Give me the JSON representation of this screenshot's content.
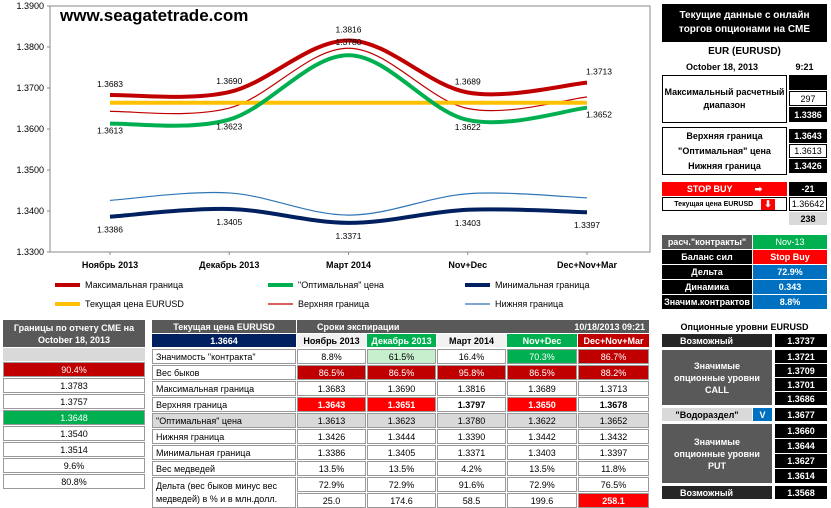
{
  "site": "www.seagatetrade.com",
  "chart_data": {
    "type": "line",
    "categories": [
      "Ноябрь 2013",
      "Декабрь 2013",
      "Март 2014",
      "Nov+Dec",
      "Dec+Nov+Mar"
    ],
    "ylim": [
      1.33,
      1.39
    ],
    "yticks": [
      "1.3300",
      "1.3400",
      "1.3500",
      "1.3600",
      "1.3700",
      "1.3800",
      "1.3900"
    ],
    "series": [
      {
        "name": "Максимальная граница",
        "values": [
          1.3683,
          1.369,
          1.3816,
          1.3689,
          1.3713
        ],
        "color": "#c00000",
        "width": 4,
        "labels": true
      },
      {
        "name": "\"Оптимальная\" цена",
        "values": [
          1.3613,
          1.3623,
          1.378,
          1.3622,
          1.3652
        ],
        "color": "#00b050",
        "width": 4,
        "labels": true
      },
      {
        "name": "Минимальная граница",
        "values": [
          1.3386,
          1.3405,
          1.3371,
          1.3403,
          1.3397
        ],
        "color": "#002060",
        "width": 4,
        "labels": true
      },
      {
        "name": "Текущая цена EURUSD",
        "values": [
          1.3664,
          1.3664,
          1.3664,
          1.3664,
          1.3664
        ],
        "color": "#ffc000",
        "width": 4,
        "labels": false
      },
      {
        "name": "Верхняя граница",
        "values": [
          1.3643,
          1.3651,
          1.3797,
          1.365,
          1.3678
        ],
        "color": "#c00000",
        "width": 1.2,
        "labels": false
      },
      {
        "name": "Нижняя граница",
        "values": [
          1.3426,
          1.3444,
          1.339,
          1.3442,
          1.3432
        ],
        "color": "#2e75b6",
        "width": 1.2,
        "labels": false
      }
    ],
    "value_labels": {
      "top": [
        "1.3683",
        "1.3690",
        "1.3816",
        "1.3689",
        "1.3713"
      ],
      "mid": [
        "1.3613",
        "1.3623",
        "1.3780",
        "1.3622",
        "1.3652"
      ],
      "low": [
        "1.3386",
        "1.3405",
        "1.3371",
        "1.3403",
        "1.3397"
      ]
    },
    "legend": [
      [
        "Максимальная граница",
        "\"Оптимальная\" цена",
        "Минимальная граница"
      ],
      [
        "Текущая цена EURUSD",
        "Верхняя граница",
        "Нижняя граница"
      ]
    ]
  },
  "right_panel": {
    "header": "Текущие данные с онлайн торгов опционами на CME",
    "pair": "EUR (EURUSD)",
    "date": "October 18, 2013",
    "time": "9:21",
    "max_range_label": "Максимальный расчетный диапазон",
    "max_range_values": [
      "",
      "297",
      "1.3386"
    ],
    "upper_label": "Верхняя граница",
    "upper_value": "1.3643",
    "optimal_label": "\"Оптимальная\" цена",
    "optimal_value": "1.3613",
    "lower_label": "Нижняя граница",
    "lower_value": "1.3426",
    "stop_buy_label": "STOP BUY",
    "stop_buy_value": "-21",
    "cur_price_label": "Текущая цена EURUSD",
    "cur_price_value": "1.36642",
    "cur_price_diff": "238",
    "contracts_label": "расч.\"контракты\"",
    "contracts_value": "Nov-13",
    "balance_label": "Баланс сил",
    "balance_value": "Stop Buy",
    "delta_label": "Дельта",
    "delta_value": "72.9%",
    "dynamics_label": "Динамика",
    "dynamics_value": "0.343",
    "significance_label": "Значим.контрактов",
    "significance_value": "8.8%"
  },
  "left_panel": {
    "header": "Границы по отчету CME на October 18, 2013",
    "values": [
      "90.4%",
      "1.3783",
      "1.3757",
      "1.3648",
      "1.3540",
      "1.3514",
      "9.6%",
      "80.8%"
    ]
  },
  "table": {
    "corner": "Текущая цена EURUSD",
    "price": "1.3664",
    "expiry_label": "Сроки экспирации",
    "timestamp": "10/18/2013 09:21",
    "columns": [
      "Ноябрь 2013",
      "Декабрь 2013",
      "Март 2014",
      "Nov+Dec",
      "Dec+Nov+Mar"
    ],
    "rows": [
      {
        "label": "Значимость \"контракта\"",
        "cells": [
          "8.8%",
          "61.5%",
          "16.4%",
          "70.3%",
          "86.7%"
        ]
      },
      {
        "label": "Вес быков",
        "cells": [
          "86.5%",
          "86.5%",
          "95.8%",
          "86.5%",
          "88.2%"
        ]
      },
      {
        "label": "Максимальная граница",
        "cells": [
          "1.3683",
          "1.3690",
          "1.3816",
          "1.3689",
          "1.3713"
        ]
      },
      {
        "label": "Верхняя граница",
        "cells": [
          "1.3643",
          "1.3651",
          "1.3797",
          "1.3650",
          "1.3678"
        ]
      },
      {
        "label": "\"Оптимальная\" цена",
        "cells": [
          "1.3613",
          "1.3623",
          "1.3780",
          "1.3622",
          "1.3652"
        ]
      },
      {
        "label": "Нижняя граница",
        "cells": [
          "1.3426",
          "1.3444",
          "1.3390",
          "1.3442",
          "1.3432"
        ]
      },
      {
        "label": "Минимальная граница",
        "cells": [
          "1.3386",
          "1.3405",
          "1.3371",
          "1.3403",
          "1.3397"
        ]
      },
      {
        "label": "Вес медведей",
        "cells": [
          "13.5%",
          "13.5%",
          "4.2%",
          "13.5%",
          "11.8%"
        ]
      },
      {
        "label": "Дельта (вес быков минус вес медведей) в % и в млн.долл.",
        "label_lines": [
          "Дельта (вес быков минус вес",
          "медведей) в % и в млн.долл."
        ],
        "cells": [
          "72.9%",
          "72.9%",
          "91.6%",
          "72.9%",
          "76.5%"
        ],
        "cells2": [
          "25.0",
          "174.6",
          "58.5",
          "199.6",
          "258.1"
        ]
      }
    ]
  },
  "options_panel": {
    "header": "Опционные уровни EURUSD",
    "top_label": "Возможный",
    "top_value": "1.3737",
    "call_label": "Значимые опционные уровни CALL",
    "call_values": [
      "1.3721",
      "1.3709",
      "1.3701",
      "1.3686"
    ],
    "watershed_label": "\"Водораздел\"",
    "watershed_mark": "V",
    "watershed_value": "1.3677",
    "put_label": "Значимые опционные уровни PUT",
    "put_values": [
      "1.3660",
      "1.3644",
      "1.3627",
      "1.3614"
    ],
    "bottom_label": "Возможный",
    "bottom_value": "1.3568"
  }
}
